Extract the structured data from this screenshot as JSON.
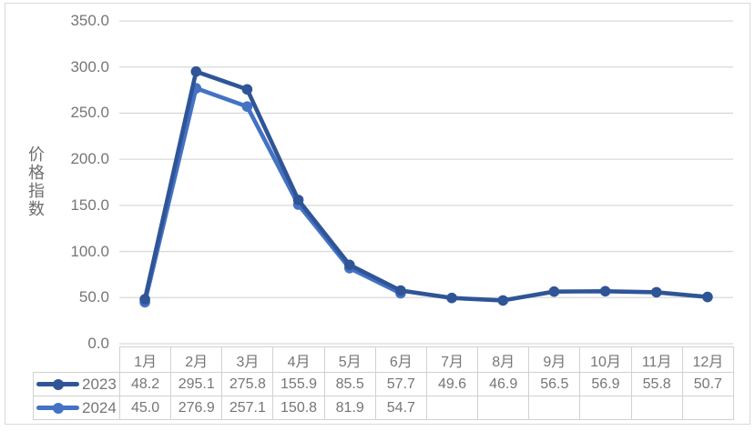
{
  "chart": {
    "y_axis_title": "价格指数",
    "y_tick_labels": [
      "350.0",
      "300.0",
      "250.0",
      "200.0",
      "150.0",
      "100.0",
      "50.0",
      "0.0"
    ]
  },
  "chart_data": {
    "type": "line",
    "title": "",
    "xlabel": "",
    "ylabel": "价格指数",
    "ylim": [
      0,
      350
    ],
    "y_tick_step": 50,
    "grid": true,
    "data_table_shown": true,
    "legend_position": "left-of-data-table-rows",
    "categories": [
      "1月",
      "2月",
      "3月",
      "4月",
      "5月",
      "6月",
      "7月",
      "8月",
      "9月",
      "10月",
      "11月",
      "12月"
    ],
    "series": [
      {
        "name": "2023",
        "color": "#2F5597",
        "marker": "circle",
        "values": [
          48.2,
          295.1,
          275.8,
          155.9,
          85.5,
          57.7,
          49.6,
          46.9,
          56.5,
          56.9,
          55.8,
          50.7
        ]
      },
      {
        "name": "2024",
        "color": "#4472C4",
        "marker": "circle",
        "values": [
          45.0,
          276.9,
          257.1,
          150.8,
          81.9,
          54.7,
          null,
          null,
          null,
          null,
          null,
          null
        ]
      }
    ]
  },
  "colors": {
    "background": "#FFFFFF",
    "chart_border": "#D9D9D9",
    "gridline": "#D9D9D9",
    "table_border": "#D1D1D1",
    "text": "#767676"
  }
}
